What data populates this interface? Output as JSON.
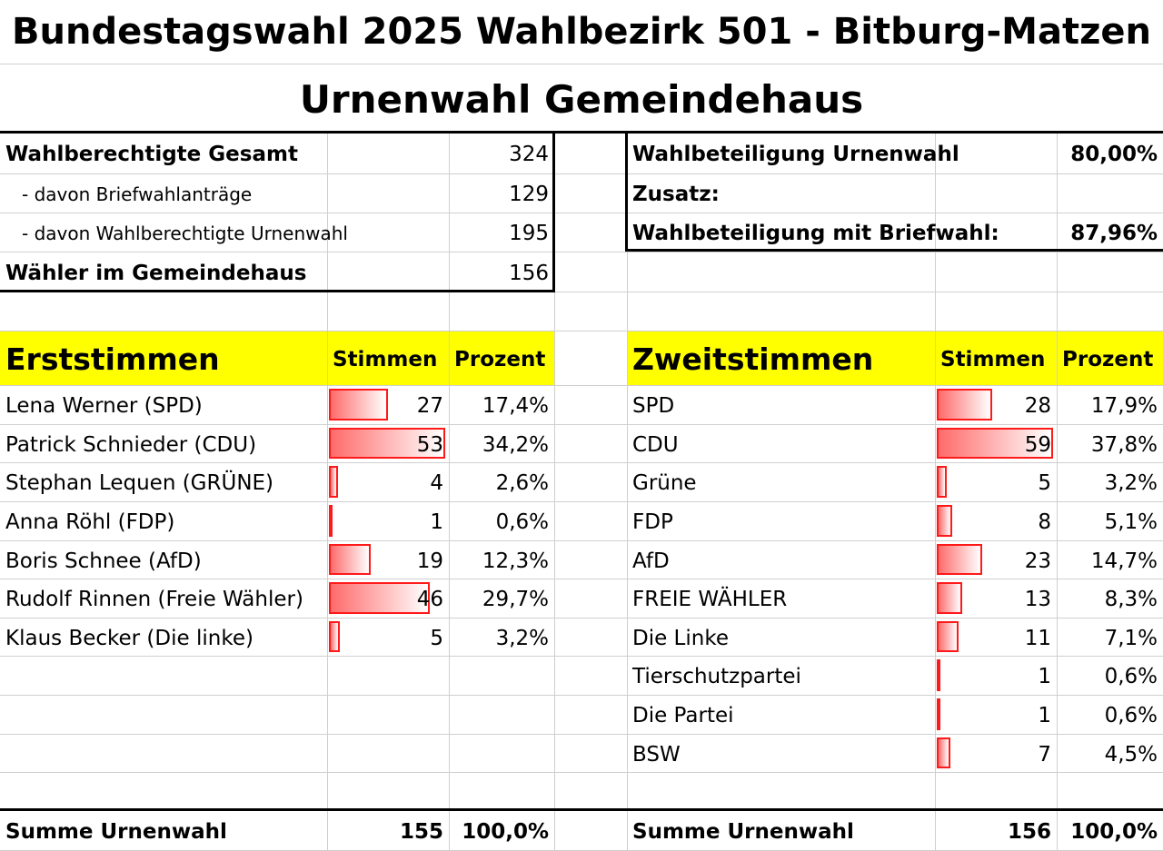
{
  "title_line1": "Bundestagswahl 2025 Wahlbezirk 501 - Bitburg-Matzen",
  "title_line2": "Urnenwahl Gemeindehaus",
  "summary_left": [
    {
      "label": "Wahlberechtigte Gesamt",
      "value": "324",
      "bold": true
    },
    {
      "label": "- davon Briefwahlanträge",
      "value": "129",
      "bold": false
    },
    {
      "label": "- davon Wahlberechtigte Urnenwahl",
      "value": "195",
      "bold": false
    },
    {
      "label": "Wähler im Gemeindehaus",
      "value": "156",
      "bold": true
    }
  ],
  "summary_right": [
    {
      "label": "Wahlbeteiligung Urnenwahl",
      "value": "80,00%"
    },
    {
      "label": "Zusatz:",
      "value": ""
    },
    {
      "label": "Wahlbeteiligung mit Briefwahl:",
      "value": "87,96%"
    }
  ],
  "erststimmen": {
    "heading": "Erststimmen",
    "col_votes": "Stimmen",
    "col_percent": "Prozent",
    "rows": [
      {
        "name": "Lena Werner (SPD)",
        "votes": 27,
        "percent": "17,4%"
      },
      {
        "name": "Patrick Schnieder (CDU)",
        "votes": 53,
        "percent": "34,2%"
      },
      {
        "name": "Stephan Lequen (GRÜNE)",
        "votes": 4,
        "percent": "2,6%"
      },
      {
        "name": "Anna Röhl (FDP)",
        "votes": 1,
        "percent": "0,6%"
      },
      {
        "name": "Boris Schnee (AfD)",
        "votes": 19,
        "percent": "12,3%"
      },
      {
        "name": "Rudolf Rinnen (Freie Wähler)",
        "votes": 46,
        "percent": "29,7%"
      },
      {
        "name": "Klaus Becker (Die linke)",
        "votes": 5,
        "percent": "3,2%"
      }
    ],
    "total_label": "Summe Urnenwahl",
    "total_votes": "155",
    "total_percent": "100,0%"
  },
  "zweitstimmen": {
    "heading": "Zweitstimmen",
    "col_votes": "Stimmen",
    "col_percent": "Prozent",
    "rows": [
      {
        "name": "SPD",
        "votes": 28,
        "percent": "17,9%"
      },
      {
        "name": "CDU",
        "votes": 59,
        "percent": "37,8%"
      },
      {
        "name": "Grüne",
        "votes": 5,
        "percent": "3,2%"
      },
      {
        "name": "FDP",
        "votes": 8,
        "percent": "5,1%"
      },
      {
        "name": "AfD",
        "votes": 23,
        "percent": "14,7%"
      },
      {
        "name": "FREIE WÄHLER",
        "votes": 13,
        "percent": "8,3%"
      },
      {
        "name": "Die Linke",
        "votes": 11,
        "percent": "7,1%"
      },
      {
        "name": "Tierschutzpartei",
        "votes": 1,
        "percent": "0,6%"
      },
      {
        "name": "Die Partei",
        "votes": 1,
        "percent": "0,6%"
      },
      {
        "name": "BSW",
        "votes": 7,
        "percent": "4,5%"
      }
    ],
    "total_label": "Summe Urnenwahl",
    "total_votes": "156",
    "total_percent": "100,0%"
  },
  "colors": {
    "header_fill": "#ffff00",
    "bar_border": "#ff1a1a",
    "bar_fill": "#ff6b6b"
  }
}
